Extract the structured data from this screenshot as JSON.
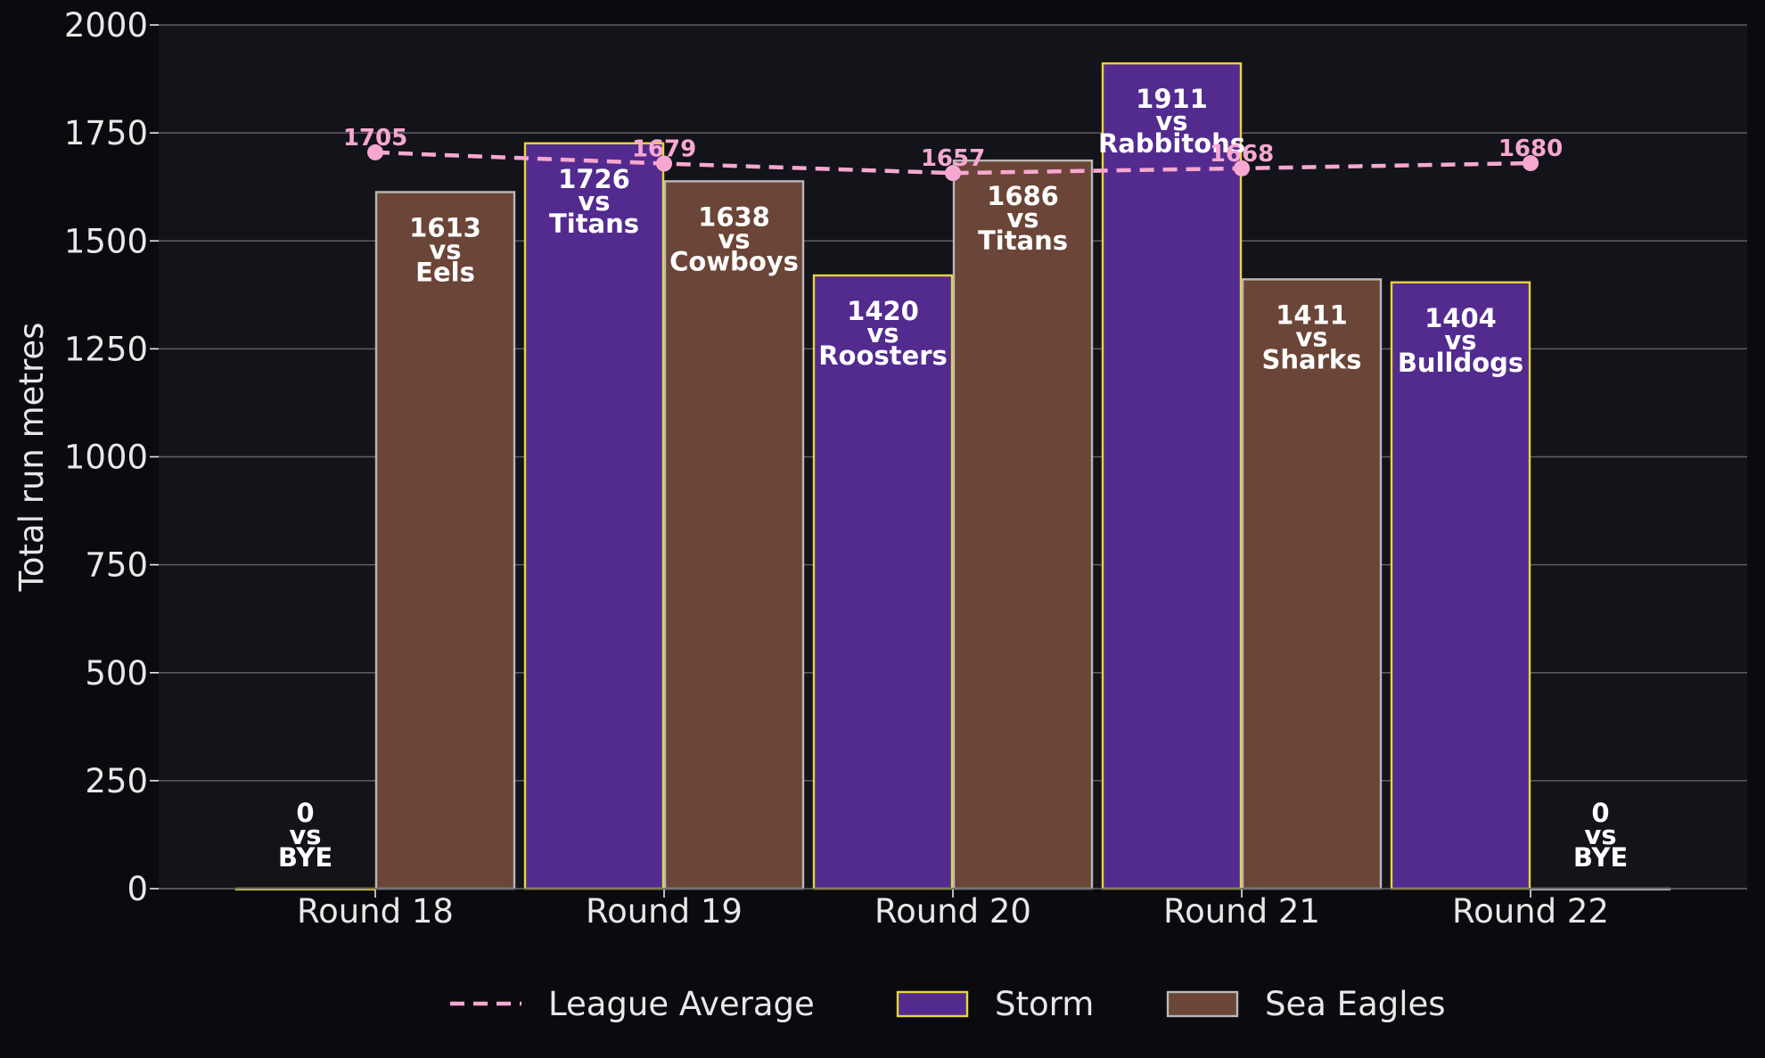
{
  "chart_data": {
    "type": "bar",
    "categories": [
      "Round 18",
      "Round 19",
      "Round 20",
      "Round 21",
      "Round 22"
    ],
    "ylabel": "Total run metres",
    "xlabel": "",
    "ylim": [
      0,
      2000
    ],
    "yticks": [
      0,
      250,
      500,
      750,
      1000,
      1250,
      1500,
      1750,
      2000
    ],
    "grid": true,
    "legend_position": "bottom-center",
    "series": [
      {
        "name": "Storm",
        "type": "bar",
        "values": [
          0,
          1726,
          1420,
          1911,
          1404
        ],
        "labels": [
          "0\nvs\nBYE",
          "1726\nvs\nTitans",
          "1420\nvs\nRoosters",
          "1911\nvs\nRabbitohs",
          "1404\nvs\nBulldogs"
        ],
        "fill": "#532b8f",
        "edge": "#e6d63a"
      },
      {
        "name": "Sea Eagles",
        "type": "bar",
        "values": [
          1613,
          1638,
          1686,
          1411,
          0
        ],
        "labels": [
          "1613\nvs\nEels",
          "1638\nvs\nCowboys",
          "1686\nvs\nTitans",
          "1411\nvs\nSharks",
          "0\nvs\nBYE"
        ],
        "fill": "#6b4537",
        "edge": "#b8b8b8"
      },
      {
        "name": "League Average",
        "type": "line",
        "style": "dashed",
        "values": [
          1705,
          1679,
          1657,
          1668,
          1680
        ],
        "color": "#f7a8d0"
      }
    ]
  },
  "colors": {
    "background": "#0b0b0f",
    "plot_background": "#13131a",
    "grid": "#5e5e63",
    "text": "#e8e8e8",
    "bar_label": "#ffffff"
  }
}
